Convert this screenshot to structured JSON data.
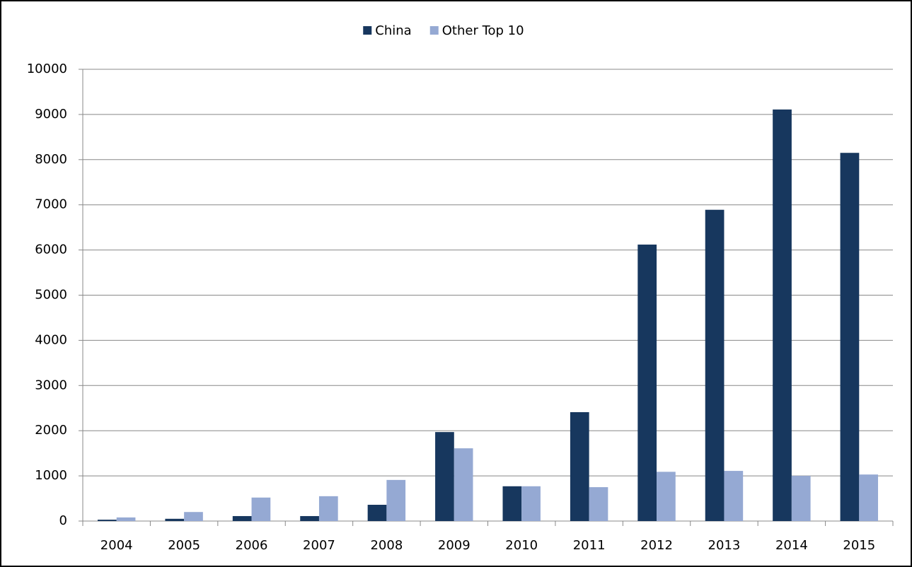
{
  "chart_data": {
    "type": "bar",
    "categories": [
      "2004",
      "2005",
      "2006",
      "2007",
      "2008",
      "2009",
      "2010",
      "2011",
      "2012",
      "2013",
      "2014",
      "2015"
    ],
    "series": [
      {
        "name": "China",
        "color": "#17375e",
        "values": [
          30,
          50,
          110,
          110,
          360,
          1970,
          770,
          2410,
          6120,
          6890,
          9110,
          8150
        ]
      },
      {
        "name": "Other Top 10",
        "color": "#95a9d3",
        "values": [
          80,
          200,
          520,
          550,
          910,
          1610,
          770,
          750,
          1090,
          1110,
          1000,
          1030
        ]
      }
    ],
    "ylim": [
      0,
      10000
    ],
    "yticks": [
      0,
      1000,
      2000,
      3000,
      4000,
      5000,
      6000,
      7000,
      8000,
      9000,
      10000
    ],
    "grid": true,
    "legend": "top"
  }
}
